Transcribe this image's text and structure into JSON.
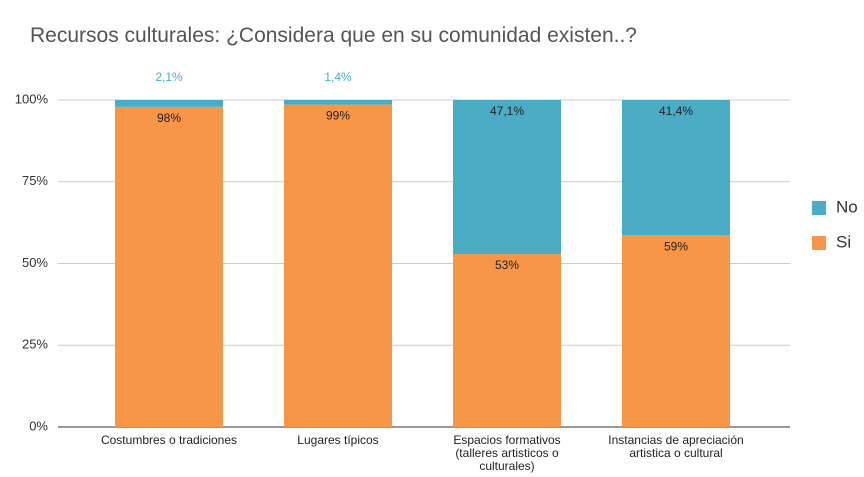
{
  "chart_data": {
    "type": "stacked_bar",
    "title": "Recursos culturales: ¿Considera que en su comunidad existen..?",
    "categories": [
      "Costumbres o tradiciones",
      "Lugares típicos",
      "Espacios formativos (talleres artisticos o culturales)",
      "Instancias de apreciación artistica o cultural"
    ],
    "series": [
      {
        "name": "Si",
        "color": "#f79646",
        "values": [
          97.9,
          98.6,
          52.9,
          58.6
        ],
        "value_labels": [
          "98%",
          "99%",
          "53%",
          "59%"
        ]
      },
      {
        "name": "No",
        "color": "#4bacc6",
        "values": [
          2.1,
          1.4,
          47.1,
          41.4
        ],
        "value_labels": [
          "2,1%",
          "1,4%",
          "47,1%",
          "41,4%"
        ]
      }
    ],
    "ylim": [
      0,
      100
    ],
    "yticks": [
      {
        "value": 0,
        "label": "0%"
      },
      {
        "value": 25,
        "label": "25%"
      },
      {
        "value": 50,
        "label": "50%"
      },
      {
        "value": 75,
        "label": "75%"
      },
      {
        "value": 100,
        "label": "100%"
      }
    ],
    "grid": true,
    "legend": "right"
  }
}
